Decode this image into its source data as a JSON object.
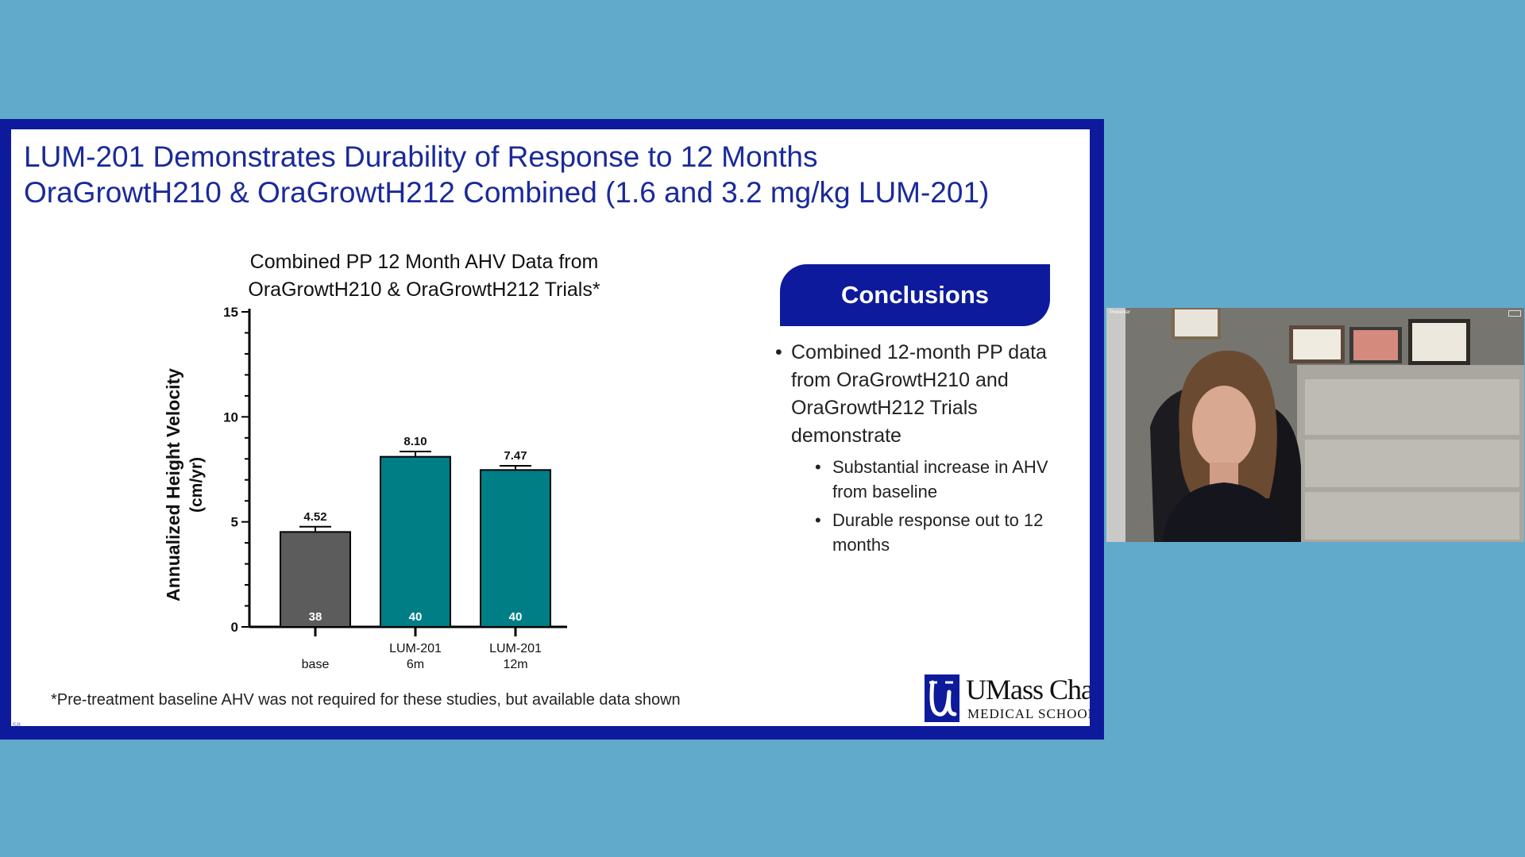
{
  "slide": {
    "title_line1": "LUM-201 Demonstrates Durability of Response to 12 Months",
    "title_line2": "OraGrowtH210 & OraGrowtH212 Combined (1.6 and 3.2 mg/kg LUM-201)",
    "footnote": "*Pre-treatment baseline AHV was not required for these studies, but available data shown",
    "slide_number": "58"
  },
  "chart_data": {
    "type": "bar",
    "title_line1": "Combined PP 12 Month AHV Data from",
    "title_line2": "OraGrowtH210 & OraGrowtH212 Trials*",
    "ylabel_line1": "Annualized Height Velocity",
    "ylabel_line2": "(cm/yr)",
    "ylim": [
      0,
      15
    ],
    "yticks": [
      0,
      5,
      10,
      15
    ],
    "categories": [
      [
        "base"
      ],
      [
        "LUM-201",
        "6m"
      ],
      [
        "LUM-201",
        "12m"
      ]
    ],
    "values": [
      4.52,
      8.1,
      7.47
    ],
    "value_labels": [
      "4.52",
      "8.10",
      "7.47"
    ],
    "error": [
      0.25,
      0.25,
      0.2
    ],
    "n_labels": [
      "38",
      "40",
      "40"
    ],
    "colors": [
      "#5c5c5c",
      "#007e86",
      "#007e86"
    ]
  },
  "conclusions": {
    "header": "Conclusions",
    "main_bullet": "Combined 12-month PP data from OraGrowtH210 and OraGrowtH212 Trials demonstrate",
    "sub_bullets": [
      "Substantial increase in AHV from baseline",
      "Durable response out to 12 months"
    ]
  },
  "logo": {
    "name": "UMass Chan",
    "subtitle": "MEDICAL SCHOOL"
  },
  "webcam": {
    "label": "Presenter"
  }
}
